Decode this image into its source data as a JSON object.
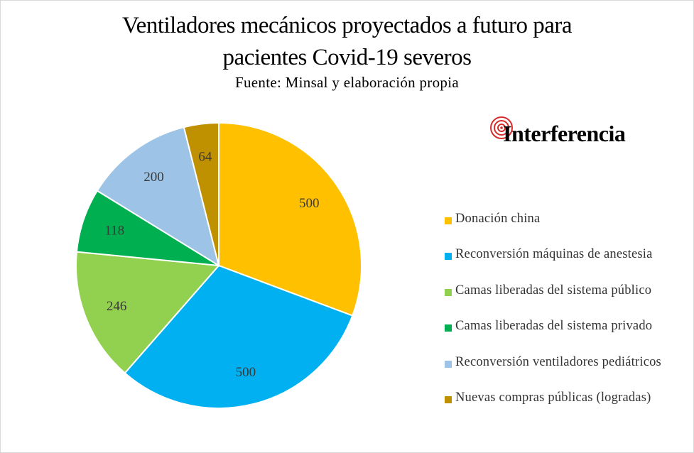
{
  "chart_data": {
    "type": "pie",
    "title_lines": [
      "Ventiladores mecánicos proyectados a futuro para",
      "pacientes Covid-19 severos"
    ],
    "subtitle": "Fuente: Minsal y elaboración propia",
    "legend_position": "right",
    "slices": [
      {
        "label": "Donación china",
        "value": 500,
        "color": "#FFC000"
      },
      {
        "label": "Reconversión máquinas de anestesia",
        "value": 500,
        "color": "#00B0F0"
      },
      {
        "label": "Camas liberadas del sistema público",
        "value": 246,
        "color": "#92D050"
      },
      {
        "label": "Camas liberadas del sistema privado",
        "value": 118,
        "color": "#00B050"
      },
      {
        "label": "Reconversión ventiladores pediátricos",
        "value": 200,
        "color": "#9DC3E6"
      },
      {
        "label": "Nuevas compras públicas (logradas)",
        "value": 64,
        "color": "#BF9000"
      }
    ]
  },
  "logo": {
    "text": "Interferencia",
    "accent": "#D62D2D"
  }
}
